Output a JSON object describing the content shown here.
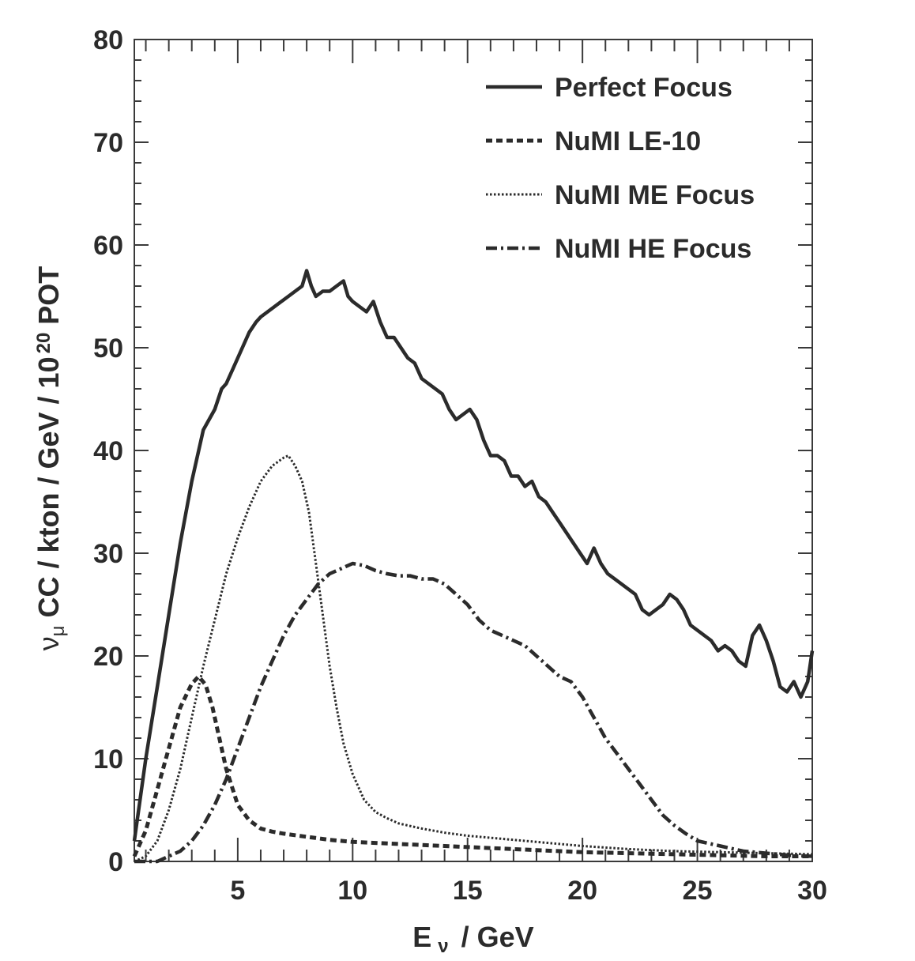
{
  "chart_data": {
    "type": "line",
    "title": "",
    "xlabel": {
      "main": "E",
      "sub": "ν",
      "rest": " / GeV"
    },
    "ylabel": {
      "nu": "ν",
      "sub": "μ",
      "main": " CC / kton / GeV / 10",
      "sup": "20",
      "tail": "  POT"
    },
    "xlim": [
      0.5,
      30
    ],
    "ylim": [
      0,
      80
    ],
    "xticks": [
      5,
      10,
      15,
      20,
      25,
      30
    ],
    "yticks": [
      0,
      10,
      20,
      30,
      40,
      50,
      60,
      70,
      80
    ],
    "legend_position": "top-right",
    "series": [
      {
        "name": "Perfect Focus",
        "style": "solid",
        "x": [
          0.5,
          1.0,
          1.5,
          2.0,
          2.5,
          3.0,
          3.5,
          4.0,
          4.3,
          4.5,
          4.8,
          5.0,
          5.3,
          5.5,
          5.8,
          6.0,
          6.3,
          6.6,
          6.9,
          7.2,
          7.5,
          7.8,
          8.0,
          8.2,
          8.4,
          8.7,
          9.0,
          9.3,
          9.6,
          9.8,
          10.0,
          10.3,
          10.6,
          10.9,
          11.2,
          11.5,
          11.8,
          12.1,
          12.4,
          12.7,
          13.0,
          13.3,
          13.6,
          13.9,
          14.2,
          14.5,
          14.8,
          15.1,
          15.4,
          15.7,
          16.0,
          16.3,
          16.6,
          16.9,
          17.2,
          17.5,
          17.8,
          18.1,
          18.4,
          18.7,
          19.0,
          19.3,
          19.6,
          19.9,
          20.2,
          20.5,
          20.8,
          21.1,
          21.4,
          21.7,
          22.0,
          22.3,
          22.6,
          22.9,
          23.2,
          23.5,
          23.8,
          24.1,
          24.4,
          24.7,
          25.0,
          25.3,
          25.6,
          25.9,
          26.2,
          26.5,
          26.8,
          27.1,
          27.4,
          27.7,
          28.0,
          28.3,
          28.6,
          28.9,
          29.2,
          29.5,
          29.8,
          30.0
        ],
        "values": [
          2,
          10,
          17,
          24,
          31,
          37,
          42,
          44,
          46,
          46.5,
          48,
          49,
          50.5,
          51.5,
          52.5,
          53,
          53.5,
          54,
          54.5,
          55,
          55.5,
          56,
          57.5,
          56,
          55,
          55.5,
          55.5,
          56,
          56.5,
          55,
          54.5,
          54,
          53.5,
          54.5,
          52.5,
          51,
          51,
          50,
          49,
          48.5,
          47,
          46.5,
          46,
          45.5,
          44,
          43,
          43.5,
          44,
          43,
          41,
          39.5,
          39.5,
          39,
          37.5,
          37.5,
          36.5,
          37,
          35.5,
          35,
          34,
          33,
          32,
          31,
          30,
          29,
          30.5,
          29,
          28,
          27.5,
          27,
          26.5,
          26,
          24.5,
          24,
          24.5,
          25,
          26,
          25.5,
          24.5,
          23,
          22.5,
          22,
          21.5,
          20.5,
          21,
          20.5,
          19.5,
          19,
          22,
          23,
          21.5,
          19.5,
          17,
          16.5,
          17.5,
          16,
          17.5,
          20.5
        ]
      },
      {
        "name": "NuMI LE-10",
        "style": "dashed",
        "x": [
          0.5,
          1.0,
          1.5,
          2.0,
          2.5,
          3.0,
          3.3,
          3.6,
          3.9,
          4.2,
          4.5,
          5.0,
          5.5,
          6.0,
          6.5,
          7.0,
          8.0,
          9.0,
          10.0,
          12.0,
          14.0,
          16.0,
          18.0,
          20.0,
          22.0,
          24.0,
          26.0,
          28.0,
          30.0
        ],
        "values": [
          0.5,
          3,
          7,
          11,
          15,
          17.3,
          18,
          17.2,
          15,
          12,
          9,
          5.5,
          4,
          3.2,
          2.9,
          2.7,
          2.4,
          2.1,
          1.9,
          1.7,
          1.5,
          1.3,
          1.1,
          0.9,
          0.8,
          0.7,
          0.6,
          0.5,
          0.5
        ]
      },
      {
        "name": "NuMI ME Focus",
        "style": "dotted",
        "x": [
          0.5,
          1.0,
          1.5,
          2.0,
          2.5,
          3.0,
          3.5,
          4.0,
          4.5,
          5.0,
          5.5,
          6.0,
          6.5,
          7.0,
          7.2,
          7.5,
          7.8,
          8.1,
          8.4,
          8.7,
          9.0,
          9.3,
          9.6,
          10.0,
          10.5,
          11.0,
          11.5,
          12.0,
          13.0,
          14.0,
          15.0,
          16.0,
          17.0,
          18.0,
          19.0,
          20.0,
          22.0,
          24.0,
          26.0,
          28.0,
          30.0
        ],
        "values": [
          0,
          0.5,
          2,
          5,
          9,
          14,
          19,
          23.5,
          28,
          31.5,
          34.5,
          37,
          38.5,
          39.3,
          39.5,
          38.5,
          37,
          34,
          29,
          24,
          19,
          15,
          11.5,
          8.5,
          6,
          4.8,
          4.2,
          3.7,
          3.2,
          2.8,
          2.5,
          2.3,
          2.1,
          1.9,
          1.7,
          1.5,
          1.2,
          1.0,
          0.9,
          0.8,
          0.7
        ]
      },
      {
        "name": "NuMI HE Focus",
        "style": "dashdot",
        "x": [
          0.5,
          1.0,
          1.5,
          2.0,
          2.5,
          3.0,
          3.5,
          4.0,
          4.5,
          5.0,
          5.5,
          6.0,
          6.5,
          7.0,
          7.5,
          8.0,
          8.5,
          9.0,
          9.5,
          10.0,
          10.5,
          11.0,
          11.5,
          12.0,
          12.5,
          13.0,
          13.5,
          14.0,
          14.5,
          15.0,
          15.5,
          16.0,
          16.5,
          17.0,
          17.5,
          18.0,
          18.5,
          19.0,
          19.5,
          20.0,
          20.5,
          21.0,
          21.5,
          22.0,
          22.5,
          23.0,
          23.5,
          24.0,
          24.5,
          25.0,
          26.0,
          27.0,
          28.0,
          29.0,
          30.0
        ],
        "values": [
          0,
          0,
          0,
          0.5,
          1,
          2,
          3.5,
          5.5,
          8,
          11,
          14,
          17,
          19.5,
          22,
          24,
          25.5,
          27,
          28,
          28.5,
          29,
          28.8,
          28.3,
          28,
          27.8,
          27.8,
          27.5,
          27.5,
          27,
          26,
          25,
          23.5,
          22.5,
          22,
          21.5,
          21,
          20,
          19,
          18,
          17.5,
          16,
          14,
          12,
          10.5,
          9,
          7.5,
          6,
          4.5,
          3.5,
          2.7,
          2,
          1.5,
          1,
          0.8,
          0.6,
          0.5
        ]
      }
    ]
  }
}
